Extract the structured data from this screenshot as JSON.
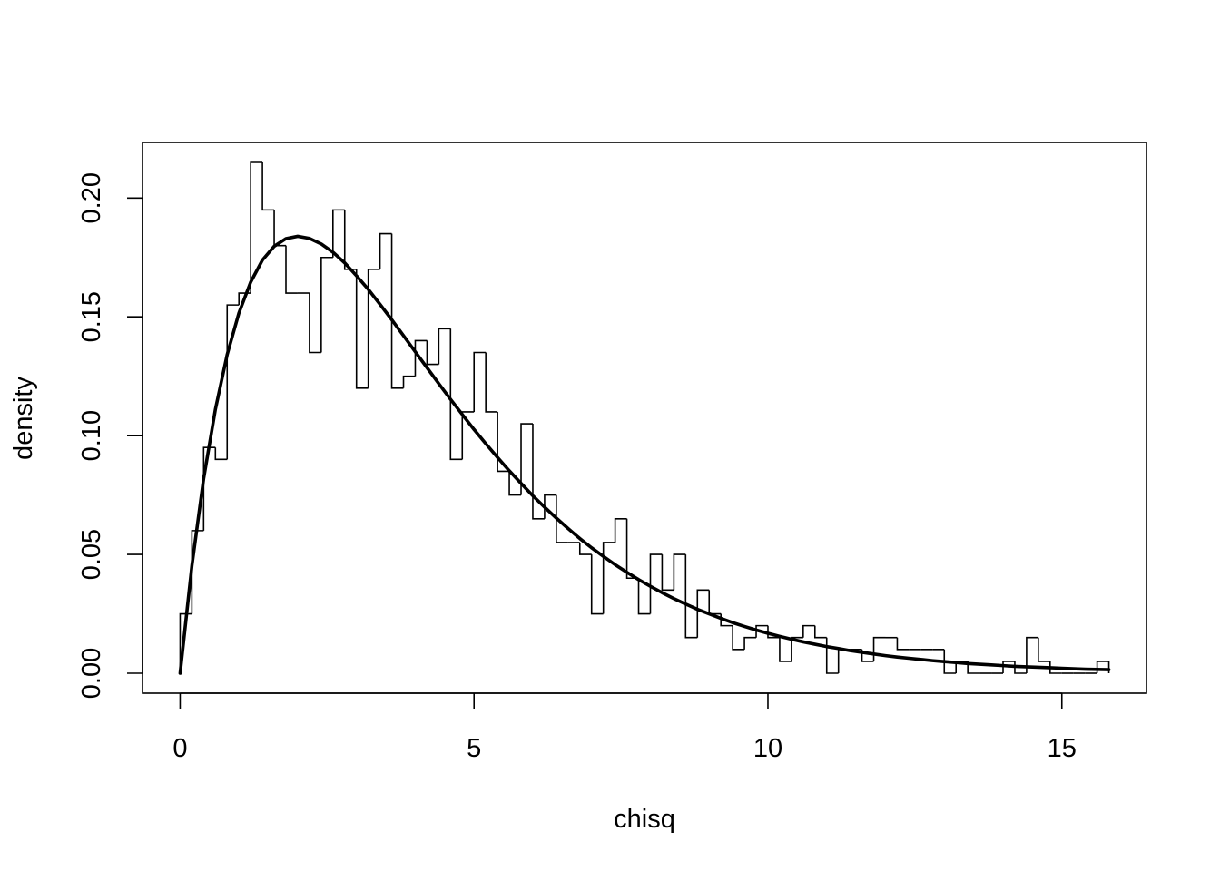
{
  "chart_data": {
    "type": "line",
    "title": "",
    "xlabel": "chisq",
    "ylabel": "density",
    "xlim": [
      -0.64,
      16.44
    ],
    "ylim": [
      -0.0084,
      0.2234
    ],
    "grid": false,
    "legend": "none",
    "x_ticks": [
      {
        "value": 0,
        "label": "0"
      },
      {
        "value": 5,
        "label": "5"
      },
      {
        "value": 10,
        "label": "10"
      },
      {
        "value": 15,
        "label": "15"
      }
    ],
    "y_ticks": [
      {
        "value": 0.0,
        "label": "0.00"
      },
      {
        "value": 0.05,
        "label": "0.05"
      },
      {
        "value": 0.1,
        "label": "0.10"
      },
      {
        "value": 0.15,
        "label": "0.15"
      },
      {
        "value": 0.2,
        "label": "0.20"
      }
    ],
    "histogram": {
      "bin_width": 0.2,
      "start": 0,
      "densities": [
        0.025,
        0.06,
        0.095,
        0.09,
        0.155,
        0.16,
        0.215,
        0.195,
        0.18,
        0.16,
        0.16,
        0.135,
        0.175,
        0.195,
        0.17,
        0.12,
        0.17,
        0.185,
        0.12,
        0.125,
        0.14,
        0.13,
        0.145,
        0.09,
        0.11,
        0.135,
        0.11,
        0.085,
        0.075,
        0.105,
        0.065,
        0.075,
        0.055,
        0.055,
        0.05,
        0.025,
        0.055,
        0.065,
        0.04,
        0.025,
        0.05,
        0.035,
        0.05,
        0.015,
        0.035,
        0.025,
        0.02,
        0.01,
        0.015,
        0.02,
        0.015,
        0.005,
        0.015,
        0.02,
        0.015,
        0.0,
        0.01,
        0.01,
        0.005,
        0.015,
        0.015,
        0.01,
        0.01,
        0.01,
        0.01,
        0.0,
        0.005,
        0.0,
        0.0,
        0.0,
        0.005,
        0.0,
        0.015,
        0.005,
        0.0,
        0.0,
        0.0,
        0.0,
        0.005
      ],
      "color": "#000000"
    },
    "series": [
      {
        "type": "curve",
        "color": "#000000",
        "x": [
          0,
          0.2,
          0.4,
          0.6,
          0.8,
          1.0,
          1.2,
          1.4,
          1.6,
          1.8,
          2.0,
          2.2,
          2.4,
          2.6,
          2.8,
          3.0,
          3.2,
          3.4,
          3.6,
          3.8,
          4.0,
          4.2,
          4.4,
          4.6,
          4.8,
          5.0,
          5.2,
          5.4,
          5.6,
          5.8,
          6.0,
          6.2,
          6.4,
          6.6,
          6.8,
          7.0,
          7.2,
          7.4,
          7.6,
          7.8,
          8.0,
          8.2,
          8.4,
          8.6,
          8.8,
          9.0,
          9.2,
          9.4,
          9.6,
          9.8,
          10.0,
          10.2,
          10.4,
          10.6,
          10.8,
          11.0,
          11.2,
          11.4,
          11.6,
          11.8,
          12.0,
          12.2,
          12.4,
          12.6,
          12.8,
          13.0,
          13.2,
          13.4,
          13.6,
          13.8,
          14.0,
          14.2,
          14.4,
          14.6,
          14.8,
          15.0,
          15.2,
          15.4,
          15.6,
          15.8
        ],
        "y": [
          0.0,
          0.0452,
          0.0819,
          0.1111,
          0.1341,
          0.1516,
          0.1646,
          0.1739,
          0.1797,
          0.1829,
          0.1839,
          0.183,
          0.1807,
          0.1772,
          0.1727,
          0.1673,
          0.1616,
          0.1553,
          0.1488,
          0.1421,
          0.1353,
          0.1286,
          0.1219,
          0.1153,
          0.1089,
          0.1026,
          0.0966,
          0.0908,
          0.0852,
          0.0799,
          0.0747,
          0.0699,
          0.0653,
          0.0609,
          0.0567,
          0.0528,
          0.0492,
          0.0457,
          0.0425,
          0.0394,
          0.0366,
          0.0339,
          0.0314,
          0.0291,
          0.0269,
          0.025,
          0.0231,
          0.0213,
          0.0197,
          0.0182,
          0.0168,
          0.0155,
          0.0143,
          0.0132,
          0.0122,
          0.0112,
          0.0104,
          0.0095,
          0.0088,
          0.0081,
          0.0074,
          0.0068,
          0.0063,
          0.0058,
          0.0053,
          0.0049,
          0.0045,
          0.0041,
          0.0038,
          0.0035,
          0.0032,
          0.0029,
          0.0027,
          0.0025,
          0.0023,
          0.0021,
          0.0019,
          0.0017,
          0.0016,
          0.0015
        ]
      }
    ]
  }
}
